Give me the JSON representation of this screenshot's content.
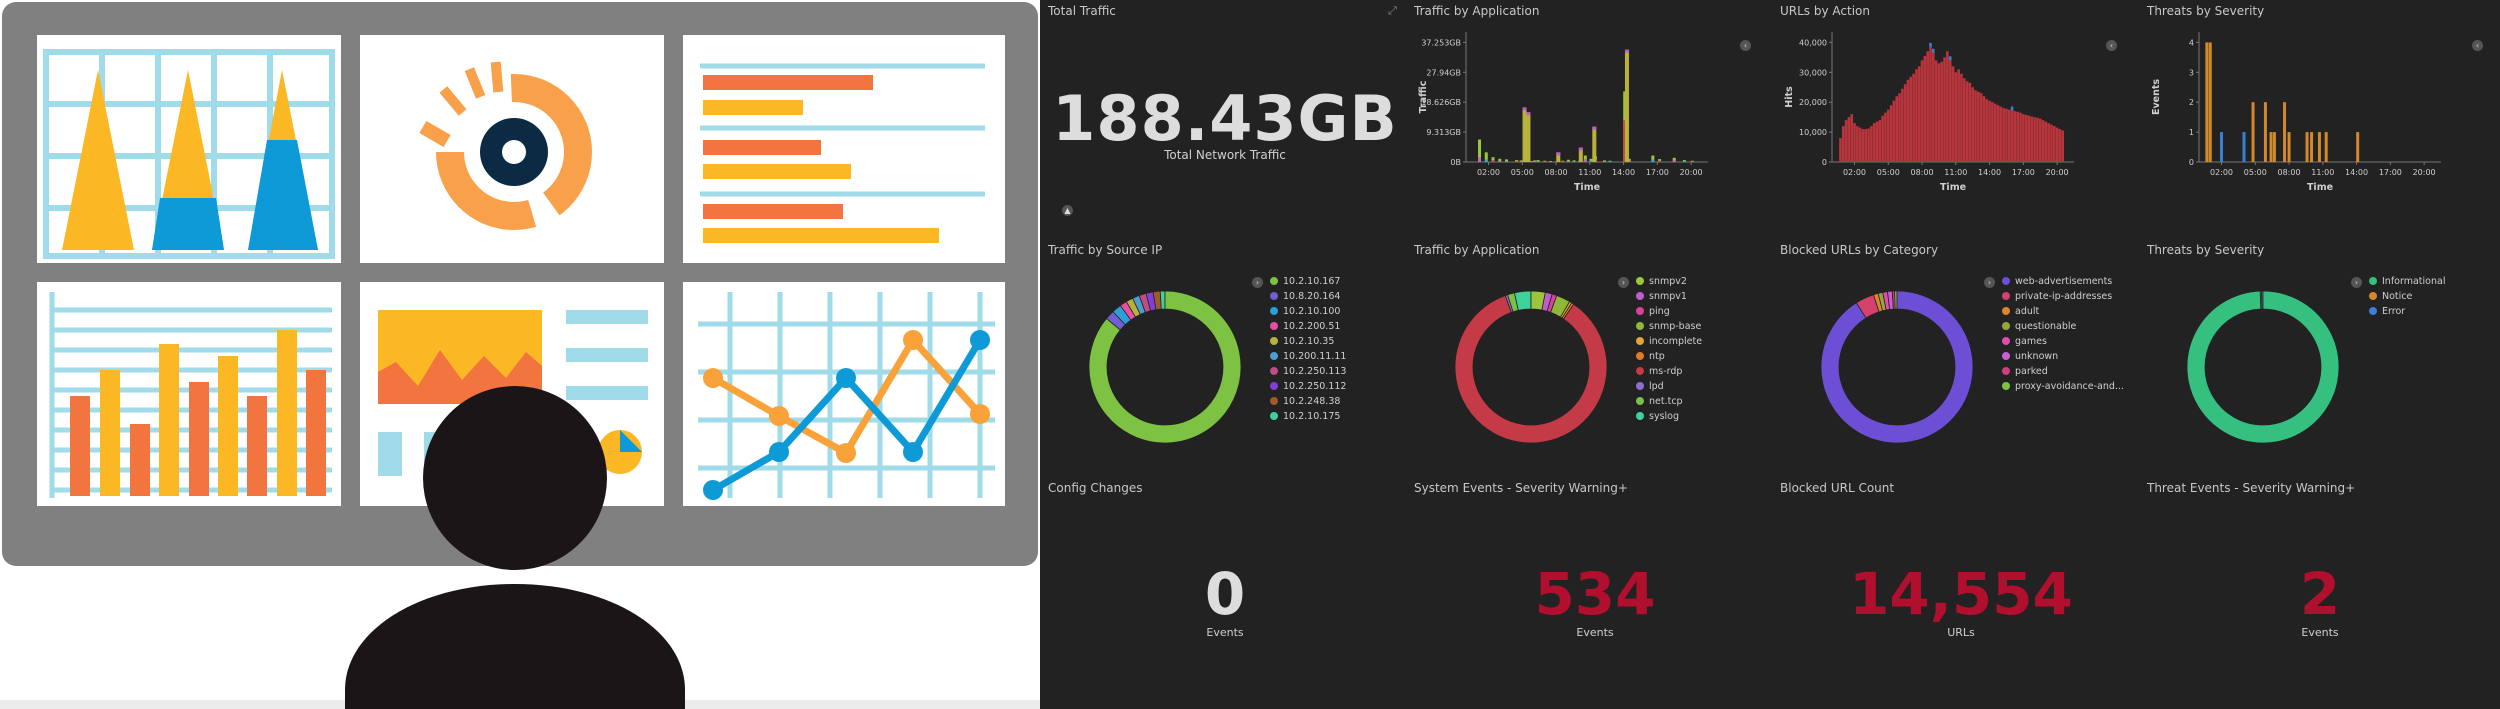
{
  "colors": {
    "dark_bg": "#222222",
    "panel_title": "#c8c8c8",
    "metric_white": "#dddddd",
    "metric_red": "#b0102e",
    "illus_orange": "#f2743e",
    "illus_yellow": "#fbb724",
    "illus_blue": "#0d9ad7",
    "illus_light_blue": "#9fdbe8",
    "monitor_gray": "#808080",
    "silhouette": "#1c1517"
  },
  "illustration": {
    "icon": "dashboard-illustration-icon"
  },
  "panels": {
    "total_traffic": {
      "title": "Total Traffic",
      "value": "188.43GB",
      "label": "Total Network Traffic",
      "expand_icon": "expand-icon"
    },
    "traffic_by_app_chart": {
      "title": "Traffic by Application"
    },
    "urls_by_action": {
      "title": "URLs by Action"
    },
    "threats_by_severity_chart": {
      "title": "Threats by Severity"
    },
    "traffic_by_source_ip": {
      "title": "Traffic by Source IP",
      "legend": [
        "10.2.10.167",
        "10.8.20.164",
        "10.2.10.100",
        "10.2.200.51",
        "10.2.10.35",
        "10.200.11.11",
        "10.2.250.113",
        "10.2.250.112",
        "10.2.248.38",
        "10.2.10.175"
      ],
      "legend_colors": [
        "#7dc242",
        "#6f5fd1",
        "#2d9fd6",
        "#e74fa3",
        "#b8b23a",
        "#4a9fd0",
        "#c04c86",
        "#7f3fd8",
        "#a15a2a",
        "#3ed19a"
      ]
    },
    "traffic_by_application_donut": {
      "title": "Traffic by Application",
      "legend": [
        "snmpv2",
        "snmpv1",
        "ping",
        "snmp-base",
        "incomplete",
        "ntp",
        "ms-rdp",
        "lpd",
        "net.tcp",
        "syslog"
      ],
      "legend_colors": [
        "#9bc63c",
        "#c05ccf",
        "#d9429a",
        "#8fb83a",
        "#e1a53a",
        "#e07b2c",
        "#c43a46",
        "#8a6ed0",
        "#7ac043",
        "#3ed19a"
      ]
    },
    "blocked_urls_by_category": {
      "title": "Blocked URLs by Category",
      "legend": [
        "web-advertisements",
        "private-ip-addresses",
        "adult",
        "questionable",
        "games",
        "unknown",
        "parked",
        "proxy-avoidance-and..."
      ],
      "legend_colors": [
        "#6d4fd6",
        "#d3416f",
        "#d8872e",
        "#9aa43a",
        "#e04bb0",
        "#c85fd3",
        "#cf3f7c",
        "#7dc242"
      ]
    },
    "threats_by_severity_donut": {
      "title": "Threats by Severity",
      "legend": [
        "Informational",
        "Notice",
        "Error"
      ],
      "legend_colors": [
        "#35c07f",
        "#d1892c",
        "#3a7fd6"
      ]
    },
    "config_changes": {
      "title": "Config Changes",
      "value": "0",
      "label": "Events"
    },
    "system_events": {
      "title": "System Events - Severity Warning+",
      "value": "534",
      "label": "Events"
    },
    "blocked_url_count": {
      "title": "Blocked URL Count",
      "value": "14,554",
      "label": "URLs"
    },
    "threat_events": {
      "title": "Threat Events - Severity Warning+",
      "value": "2",
      "label": "Events"
    }
  },
  "chart_data": [
    {
      "type": "bar",
      "title": "Traffic by Application",
      "xlabel": "Time",
      "ylabel": "Traffic",
      "x_ticks": [
        "02:00",
        "05:00",
        "08:00",
        "11:00",
        "14:00",
        "17:00",
        "20:00"
      ],
      "y_ticks": [
        "0B",
        "9.313GB",
        "18.626GB",
        "27.94GB",
        "37.253GB"
      ],
      "ylim": [
        0,
        39
      ],
      "series_colors": [
        "#9bc63c",
        "#c05ccf",
        "#2d9fd6",
        "#c43a46"
      ],
      "x": [
        1.2,
        1.8,
        2.4,
        3.0,
        3.6,
        4.5,
        4.9,
        5.3,
        5.8,
        6.1,
        6.4,
        7.0,
        7.5,
        8.1,
        8.6,
        9.1,
        9.6,
        10.1,
        10.6,
        11.1,
        11.5,
        12.3,
        12.8,
        14.1,
        14.5,
        16.6,
        17.2,
        18.5,
        19.4,
        20.1
      ],
      "values": [
        7.0,
        3.0,
        1.5,
        1.0,
        0.8,
        0.6,
        0.5,
        0.4,
        0.3,
        0.5,
        0.6,
        0.4,
        0.3,
        0.2,
        0.4,
        0.7,
        0.5,
        0.4,
        2.0,
        1.0,
        1.8,
        0.5,
        0.4,
        22.0,
        1.0,
        2.0,
        0.9,
        1.3,
        0.6,
        0.4
      ],
      "overlay_values": [
        1.5,
        0.8,
        0.5,
        0.3,
        0.2,
        0.2,
        0.2,
        0.2,
        0.1,
        0.2,
        0.2,
        0.2,
        0.1,
        0.1,
        0.2,
        0.3,
        0.2,
        0.2,
        0.9,
        0.4,
        0.8,
        0.2,
        0.2,
        13.0,
        0.4,
        0.8,
        0.4,
        0.5,
        0.3,
        0.2
      ],
      "highlights": [
        {
          "x": 5.2,
          "value": 17.0
        },
        {
          "x": 5.55,
          "value": 15.5
        },
        {
          "x": 8.2,
          "value": 3.0
        },
        {
          "x": 10.2,
          "value": 4.5
        },
        {
          "x": 11.4,
          "value": 11.0
        },
        {
          "x": 14.3,
          "value": 35.0
        }
      ]
    },
    {
      "type": "bar",
      "title": "URLs by Action",
      "xlabel": "Time",
      "ylabel": "Hits",
      "x_ticks": [
        "02:00",
        "05:00",
        "08:00",
        "11:00",
        "14:00",
        "17:00",
        "20:00"
      ],
      "y_ticks": [
        "0",
        "10,000",
        "20,000",
        "30,000",
        "40,000"
      ],
      "ylim": [
        0,
        42000
      ],
      "series_colors": [
        "#b8353c",
        "#3a7fd6"
      ],
      "x": [
        0.75,
        1.0,
        1.25,
        1.5,
        1.75,
        2.0,
        2.25,
        2.5,
        2.75,
        3.0,
        3.25,
        3.5,
        3.75,
        4.0,
        4.25,
        4.5,
        4.75,
        5.0,
        5.25,
        5.5,
        5.75,
        6.0,
        6.25,
        6.5,
        6.75,
        7.0,
        7.25,
        7.5,
        7.75,
        8.0,
        8.25,
        8.5,
        8.75,
        9.0,
        9.25,
        9.5,
        9.75,
        10.0,
        10.25,
        10.5,
        10.75,
        11.0,
        11.25,
        11.5,
        11.75,
        12.0,
        12.25,
        12.5,
        12.75,
        13.0,
        13.25,
        13.5,
        13.75,
        14.0,
        14.25,
        14.5,
        14.75,
        15.0,
        15.25,
        15.5,
        15.75,
        16.0,
        16.25,
        16.5,
        16.75,
        17.0,
        17.25,
        17.5,
        17.75,
        18.0,
        18.25,
        18.5,
        18.75,
        19.0,
        19.25,
        19.5,
        19.75,
        20.0,
        20.25,
        20.5
      ],
      "values": [
        8000,
        12000,
        14000,
        15000,
        16000,
        13000,
        12000,
        11500,
        11000,
        11000,
        11200,
        12000,
        13000,
        13500,
        14000,
        15500,
        16500,
        17500,
        19000,
        20500,
        22000,
        23000,
        24500,
        26000,
        27500,
        28500,
        29500,
        31000,
        32000,
        34000,
        35500,
        37000,
        38500,
        36500,
        34000,
        33000,
        33500,
        35000,
        37000,
        34000,
        32000,
        30000,
        31000,
        29500,
        28000,
        27000,
        26500,
        25000,
        24000,
        23500,
        23000,
        22000,
        21000,
        20500,
        20000,
        19500,
        19000,
        18500,
        18000,
        17800,
        17500,
        17200,
        17000,
        16800,
        16500,
        16000,
        15800,
        15500,
        15200,
        15000,
        14800,
        14500,
        14000,
        13500,
        13000,
        12500,
        12000,
        11500,
        11000,
        10500
      ],
      "overlay_series_values": [
        0,
        0,
        0,
        0,
        0,
        0,
        0,
        0,
        0,
        0,
        0,
        0,
        0,
        0,
        0,
        0,
        0,
        0,
        0,
        0,
        0,
        0,
        0,
        0,
        0,
        0,
        0,
        0,
        0,
        0,
        0,
        0,
        1500,
        1500,
        0,
        0,
        0,
        0,
        0,
        1500,
        0,
        0,
        0,
        0,
        0,
        0,
        0,
        0,
        0,
        0,
        0,
        0,
        0,
        0,
        0,
        0,
        0,
        0,
        0,
        0,
        0,
        1500,
        0,
        0,
        0,
        0,
        0,
        0,
        0,
        0,
        0,
        0,
        0,
        0,
        0,
        0,
        0,
        0,
        0,
        0
      ]
    },
    {
      "type": "bar",
      "title": "Threats by Severity",
      "xlabel": "Time",
      "ylabel": "Events",
      "x_ticks": [
        "02:00",
        "05:00",
        "08:00",
        "11:00",
        "14:00",
        "17:00",
        "20:00"
      ],
      "y_ticks": [
        "0",
        "1",
        "2",
        "3",
        "4"
      ],
      "ylim": [
        0,
        4
      ],
      "series": [
        {
          "name": "Notice",
          "color": "#d1892c",
          "x": [
            0.7,
            1.0,
            4.8,
            5.9,
            6.4,
            6.7,
            7.6,
            8.0,
            9.6,
            10.0,
            10.7,
            11.3,
            14.1
          ],
          "values": [
            4,
            4,
            2,
            2,
            1,
            1,
            2,
            1,
            1,
            1,
            1,
            1,
            1
          ]
        },
        {
          "name": "Error",
          "color": "#3a7fd6",
          "x": [
            2.0,
            4.0
          ],
          "values": [
            1,
            1
          ]
        }
      ]
    },
    {
      "type": "pie",
      "title": "Traffic by Source IP",
      "labels": [
        "10.2.10.167",
        "10.8.20.164",
        "10.2.10.100",
        "10.2.200.51",
        "10.2.10.35",
        "10.200.11.11",
        "10.2.250.113",
        "10.2.250.112",
        "10.2.248.38",
        "10.2.10.175"
      ],
      "values": [
        86,
        2,
        2,
        1.5,
        1.5,
        1.5,
        1.5,
        1.5,
        1.5,
        1
      ]
    },
    {
      "type": "pie",
      "title": "Traffic by Application",
      "labels": [
        "snmpv2",
        "snmpv1",
        "ping",
        "snmp-base",
        "incomplete",
        "ntp",
        "ms-rdp",
        "lpd",
        "net.tcp",
        "syslog"
      ],
      "values": [
        3,
        1.5,
        1,
        3,
        0.5,
        0.5,
        85,
        0.5,
        1.5,
        3.5
      ]
    },
    {
      "type": "pie",
      "title": "Blocked URLs by Category",
      "labels": [
        "web-advertisements",
        "private-ip-addresses",
        "adult",
        "questionable",
        "games",
        "unknown",
        "parked",
        "proxy-avoidance-and..."
      ],
      "values": [
        91,
        4,
        1,
        1,
        1,
        1,
        0.5,
        0.5
      ]
    },
    {
      "type": "pie",
      "title": "Threats by Severity",
      "labels": [
        "Informational",
        "Notice",
        "Error"
      ],
      "values": [
        99.4,
        0.3,
        0.3
      ]
    }
  ]
}
